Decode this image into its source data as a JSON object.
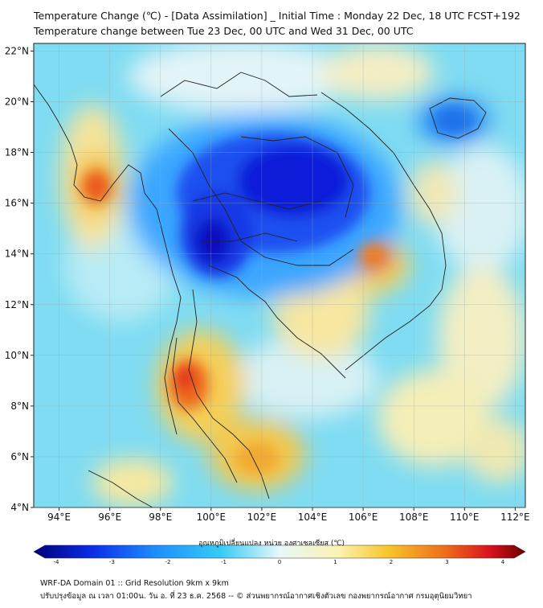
{
  "title_line1": "Temperature Change (℃) - [Data Assimilation] _ Initial Time : Monday 22 Dec, 18 UTC FCST+192",
  "title_line2": "Temperature change between Tue 23 Dec, 00 UTC and Wed 31 Dec, 00 UTC",
  "axes": {
    "lat_labels": [
      "4°N",
      "6°N",
      "8°N",
      "10°N",
      "12°N",
      "14°N",
      "16°N",
      "18°N",
      "20°N",
      "22°N"
    ],
    "lon_labels": [
      "94°E",
      "96°E",
      "98°E",
      "100°E",
      "102°E",
      "104°E",
      "106°E",
      "108°E",
      "110°E",
      "112°E"
    ],
    "lat_range": [
      4,
      22.3
    ],
    "lon_range": [
      93,
      112.4
    ]
  },
  "colorbar": {
    "label": "อุณหภูมิเปลี่ยนแปลง หน่วย องศาเซลเซียส (℃)",
    "ticks": [
      "-4",
      "-3",
      "-2",
      "-1",
      "0",
      "1",
      "2",
      "3",
      "4"
    ],
    "range": [
      -4,
      4
    ],
    "colors": [
      "#00007a",
      "#0a2ee8",
      "#1f8fff",
      "#33ccf5",
      "#e8f7fa",
      "#fbf3b0",
      "#f7c62a",
      "#ee6a1a",
      "#d7101c",
      "#6b0000"
    ]
  },
  "footer_line1": "WRF-DA Domain 01 :: Grid Resolution 9km x 9km",
  "footer_line2": "ปรับปรุงข้อมูล ณ เวลา 01:00น. วัน อ. ที่ 23 ธ.ค. 2568 -- © ส่วนพยากรณ์อากาศเชิงตัวเลข กองพยากรณ์อากาศ กรมอุตุนิยมวิทยา"
}
